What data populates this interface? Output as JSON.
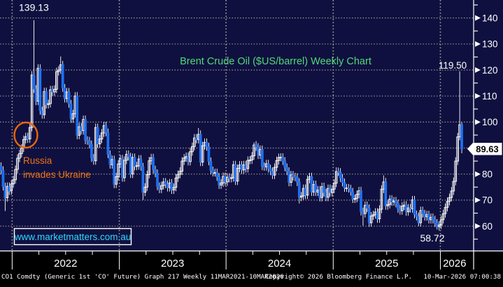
{
  "title": "Brent Crude Oil ($US/barrel) Weekly Chart",
  "watermark": "www.marketmatters.com.au",
  "annotations": {
    "high_label": "139.13",
    "spike_label": "119.50",
    "low_label": "58.72",
    "last_price": "89.63",
    "event_line1": "Russia",
    "event_line2": "invades Ukraine"
  },
  "footer": {
    "left": "CO1 Comdty (Generic 1st 'CO' Future) Graph 217 Weekly 11MAR2021-10MAR2026",
    "center": "Copyright© 2026 Bloomberg Finance L.P.",
    "right": "10-Mar-2026 07:00:38"
  },
  "colors": {
    "background": "#101040",
    "strip": "#000000",
    "up": "#ffffff",
    "down": "#1e70f0",
    "grid": "#a0a098",
    "axis": "#ffffff",
    "title": "#50d878",
    "event": "#ee7311",
    "watermark": "#2fd8ff",
    "tag_fill": "#ffffff",
    "tag_text": "#000000"
  },
  "chart_data": {
    "type": "candlestick",
    "instrument": "CO1 Comdty (Generic 1st 'CO' Future)",
    "period": "Weekly 11MAR2021-10MAR2026",
    "ylim": [
      50.6,
      146.9
    ],
    "yticks": [
      60,
      70,
      80,
      90,
      100,
      110,
      120,
      130,
      140
    ],
    "hidden_ytick": 90,
    "minor_ytick_step": 5,
    "year_boundaries_week": [
      5.4,
      57.5,
      109.4,
      161.5,
      213.6
    ],
    "quarter_weeks": 13,
    "years": [
      {
        "label": "2022",
        "center_week": 31.4
      },
      {
        "label": "2023",
        "center_week": 83.4
      },
      {
        "label": "2024",
        "center_week": 135.4
      },
      {
        "label": "2025",
        "center_week": 187.5
      },
      {
        "label": "2026",
        "center_week": 220.5
      }
    ],
    "first_open": 83.0,
    "default_wick": 1.5,
    "last_price": 89.63,
    "high_of_range": 139.13,
    "low_of_range": 58.72,
    "recent_spike_high": 119.5,
    "closes": [
      81.5,
      75.2,
      70.9,
      75.3,
      73.5,
      76.2,
      77.8,
      81.8,
      86.1,
      87.9,
      90.0,
      93.3,
      94.4,
      93.5,
      97.9,
      118.1,
      112.7,
      108.0,
      120.7,
      104.4,
      102.8,
      111.7,
      106.7,
      107.1,
      112.4,
      111.6,
      112.6,
      119.4,
      120.0,
      122.0,
      113.1,
      109.0,
      111.6,
      107.0,
      101.2,
      103.2,
      110.0,
      94.9,
      98.2,
      96.7,
      101.0,
      93.0,
      92.8,
      91.4,
      86.2,
      85.1,
      97.9,
      91.6,
      93.5,
      95.8,
      98.6,
      96.0,
      87.6,
      83.6,
      85.6,
      76.1,
      79.0,
      83.9,
      85.9,
      78.6,
      85.3,
      87.6,
      86.7,
      80.0,
      86.4,
      83.0,
      83.2,
      85.8,
      82.8,
      73.0,
      75.0,
      79.8,
      85.1,
      86.3,
      81.7,
      80.3,
      75.3,
      74.2,
      75.6,
      77.0,
      76.1,
      74.8,
      76.6,
      73.9,
      74.9,
      78.5,
      79.9,
      81.1,
      85.0,
      86.2,
      86.8,
      84.8,
      88.6,
      90.6,
      93.9,
      93.3,
      95.3,
      84.6,
      90.9,
      92.2,
      90.5,
      84.9,
      81.4,
      80.6,
      80.6,
      78.9,
      75.8,
      76.6,
      79.1,
      77.0,
      78.8,
      78.3,
      78.6,
      83.6,
      77.3,
      82.2,
      83.5,
      81.6,
      83.6,
      82.1,
      85.3,
      85.4,
      87.0,
      91.2,
      90.4,
      87.3,
      89.5,
      83.0,
      82.8,
      84.0,
      82.1,
      81.1,
      79.6,
      82.6,
      85.2,
      86.4,
      86.5,
      85.0,
      82.6,
      81.1,
      76.8,
      79.7,
      79.0,
      78.8,
      76.9,
      71.1,
      71.6,
      74.5,
      71.9,
      78.0,
      79.0,
      73.1,
      76.0,
      73.1,
      73.9,
      71.0,
      75.2,
      72.9,
      71.1,
      74.5,
      72.9,
      74.2,
      76.5,
      81.0,
      80.8,
      78.5,
      76.8,
      74.7,
      74.7,
      74.4,
      73.2,
      70.4,
      70.6,
      72.2,
      73.6,
      65.6,
      64.8,
      68.0,
      66.9,
      61.3,
      63.9,
      64.4,
      65.4,
      62.8,
      66.5,
      74.2,
      77.0,
      67.8,
      68.3,
      70.4,
      69.3,
      69.7,
      68.7,
      66.6,
      65.9,
      67.7,
      68.1,
      65.5,
      67.0,
      66.7,
      70.1,
      64.5,
      63.7,
      61.3,
      66.0,
      64.8,
      63.6,
      64.4,
      62.5,
      63.4,
      62.5,
      61.2,
      59.8,
      60.4,
      62.5,
      64.8,
      67.2,
      69.5,
      71.0,
      73.5,
      77.2,
      85.0,
      94.3,
      99.0,
      89.63
    ],
    "overrides": [
      {
        "i": 2,
        "l": 65.8
      },
      {
        "i": 16,
        "h": 139.13
      },
      {
        "i": 29,
        "h": 125.2
      },
      {
        "i": 69,
        "l": 70.1
      },
      {
        "i": 96,
        "h": 97.7
      },
      {
        "i": 123,
        "h": 92.2
      },
      {
        "i": 145,
        "l": 68.7
      },
      {
        "i": 163,
        "h": 82.6
      },
      {
        "i": 176,
        "l": 60.2
      },
      {
        "i": 179,
        "l": 59.7
      },
      {
        "i": 186,
        "h": 79.5
      },
      {
        "i": 203,
        "l": 60.0
      },
      {
        "i": 212,
        "l": 58.72
      },
      {
        "i": 223,
        "h": 119.5,
        "l": 93.0
      },
      {
        "i": 224,
        "h": 100.0,
        "l": 88.0
      }
    ]
  }
}
